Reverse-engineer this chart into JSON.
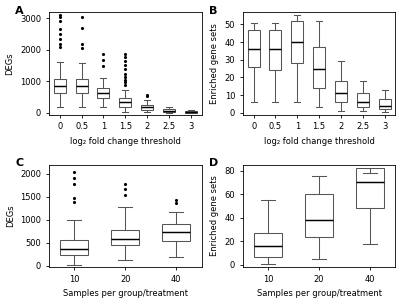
{
  "panel_A": {
    "label": "A",
    "ylabel": "DEGs",
    "xlabel": "log₂ fold change threshold",
    "xtick_labels": [
      "0",
      "0.5",
      "1",
      "1.5",
      "2",
      "2.5",
      "3"
    ],
    "ylim": [
      -50,
      3200
    ],
    "yticks": [
      0,
      1000,
      2000,
      3000
    ],
    "boxes": [
      {
        "q1": 620,
        "median": 870,
        "q3": 1080,
        "whislo": 200,
        "whishi": 1600,
        "fliers_high": [
          2100,
          2200,
          2350,
          2500,
          2650,
          2900,
          3050,
          3100
        ],
        "fliers_low": []
      },
      {
        "q1": 640,
        "median": 870,
        "q3": 1080,
        "whislo": 200,
        "whishi": 1580,
        "fliers_high": [
          2050,
          2200,
          2700,
          3050
        ],
        "fliers_low": []
      },
      {
        "q1": 480,
        "median": 630,
        "q3": 800,
        "whislo": 180,
        "whishi": 1120,
        "fliers_high": [
          1480,
          1680,
          1880
        ],
        "fliers_low": []
      },
      {
        "q1": 200,
        "median": 340,
        "q3": 490,
        "whislo": 40,
        "whishi": 730,
        "fliers_high": [
          900,
          980,
          1060,
          1150,
          1250,
          1380,
          1520,
          1650,
          1780,
          1880
        ],
        "fliers_low": []
      },
      {
        "q1": 100,
        "median": 180,
        "q3": 265,
        "whislo": 20,
        "whishi": 400,
        "fliers_high": [
          530,
          570
        ],
        "fliers_low": []
      },
      {
        "q1": 40,
        "median": 78,
        "q3": 130,
        "whislo": 8,
        "whishi": 200,
        "fliers_high": [],
        "fliers_low": []
      },
      {
        "q1": 12,
        "median": 25,
        "q3": 48,
        "whislo": 3,
        "whishi": 80,
        "fliers_high": [],
        "fliers_low": []
      }
    ]
  },
  "panel_B": {
    "label": "B",
    "ylabel": "Enriched gene sets",
    "xlabel": "log₂ fold change threshold",
    "xtick_labels": [
      "0",
      "0.5",
      "1",
      "1.5",
      "2",
      "2.5",
      "3"
    ],
    "ylim": [
      -1,
      57
    ],
    "yticks": [
      0,
      10,
      20,
      30,
      40,
      50
    ],
    "boxes": [
      {
        "q1": 26,
        "median": 36,
        "q3": 47,
        "whislo": 6,
        "whishi": 51,
        "fliers_high": [],
        "fliers_low": []
      },
      {
        "q1": 24,
        "median": 36,
        "q3": 47,
        "whislo": 6,
        "whishi": 51,
        "fliers_high": [],
        "fliers_low": []
      },
      {
        "q1": 28,
        "median": 40,
        "q3": 52,
        "whislo": 6,
        "whishi": 55,
        "fliers_high": [],
        "fliers_low": []
      },
      {
        "q1": 14,
        "median": 25,
        "q3": 37,
        "whislo": 3,
        "whishi": 52,
        "fliers_high": [],
        "fliers_low": []
      },
      {
        "q1": 6,
        "median": 11,
        "q3": 18,
        "whislo": 1,
        "whishi": 29,
        "fliers_high": [],
        "fliers_low": []
      },
      {
        "q1": 3,
        "median": 6,
        "q3": 11,
        "whislo": 1,
        "whishi": 18,
        "fliers_high": [],
        "fliers_low": []
      },
      {
        "q1": 2,
        "median": 4,
        "q3": 8,
        "whislo": 0.5,
        "whishi": 13,
        "fliers_high": [],
        "fliers_low": []
      }
    ]
  },
  "panel_C": {
    "label": "C",
    "ylabel": "DEGs",
    "xlabel": "Samples per group/treatment",
    "xtick_labels": [
      "10",
      "20",
      "40"
    ],
    "ylim": [
      -30,
      2200
    ],
    "yticks": [
      0,
      500,
      1000,
      1500,
      2000
    ],
    "boxes": [
      {
        "q1": 240,
        "median": 360,
        "q3": 560,
        "whislo": 25,
        "whishi": 990,
        "fliers_high": [
          1380,
          1470,
          1780,
          1920,
          2050
        ],
        "fliers_low": []
      },
      {
        "q1": 460,
        "median": 590,
        "q3": 770,
        "whislo": 120,
        "whishi": 1270,
        "fliers_high": [
          1530,
          1670,
          1780
        ],
        "fliers_low": []
      },
      {
        "q1": 550,
        "median": 740,
        "q3": 920,
        "whislo": 190,
        "whishi": 1180,
        "fliers_high": [
          1360,
          1430
        ],
        "fliers_low": []
      }
    ]
  },
  "panel_D": {
    "label": "D",
    "ylabel": "Enriched gene sets",
    "xlabel": "Samples per group/treatment",
    "xtick_labels": [
      "10",
      "20",
      "40"
    ],
    "ylim": [
      -2,
      85
    ],
    "yticks": [
      0,
      20,
      40,
      60,
      80
    ],
    "boxes": [
      {
        "q1": 7,
        "median": 16,
        "q3": 27,
        "whislo": 1,
        "whishi": 55,
        "fliers_high": [],
        "fliers_low": []
      },
      {
        "q1": 24,
        "median": 38,
        "q3": 60,
        "whislo": 5,
        "whishi": 75,
        "fliers_high": [],
        "fliers_low": []
      },
      {
        "q1": 48,
        "median": 70,
        "q3": 82,
        "whislo": 18,
        "whishi": 78,
        "fliers_high": [],
        "fliers_low": []
      }
    ]
  },
  "box_edgecolor": "#555555",
  "median_color": "#000000",
  "whisker_color": "#555555",
  "cap_color": "#555555",
  "flier_color": "#000000",
  "flier_size": 2.5,
  "linewidth": 0.75,
  "figsize": [
    4.01,
    3.04
  ],
  "dpi": 100
}
